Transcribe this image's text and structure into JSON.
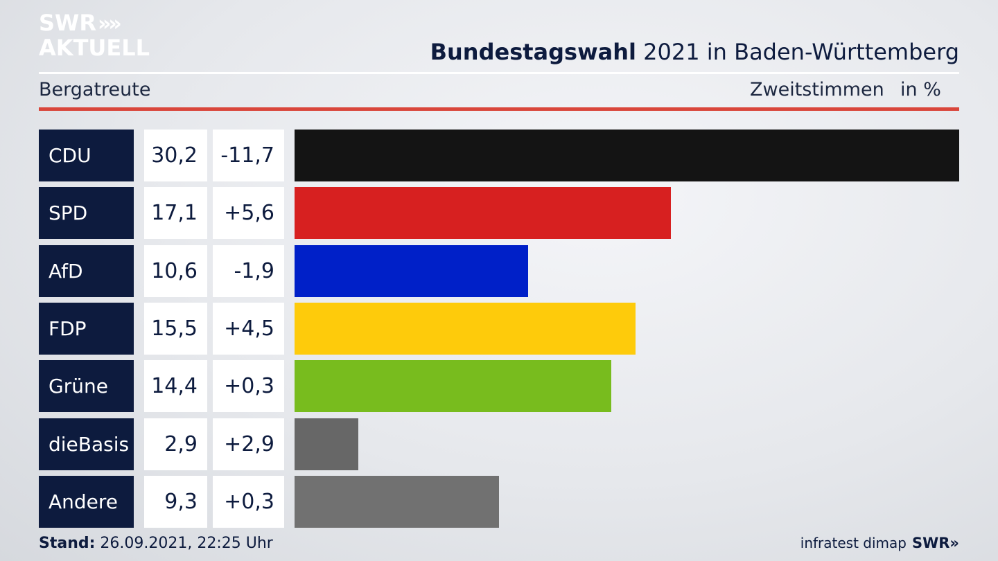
{
  "header": {
    "logo_line1": "SWR",
    "logo_chevrons": "»",
    "logo_line2": "AKTUELL",
    "title_bold": "Bundestagswahl",
    "title_rest": " 2021 in Baden-Württemberg",
    "region": "Bergatreute",
    "metric": "Zweitstimmen",
    "unit": "in %"
  },
  "footer": {
    "stand_label": "Stand:",
    "stand_value": " 26.09.2021, 22:25 Uhr",
    "source": "infratest dimap",
    "brand": "SWR»"
  },
  "chart_data": {
    "type": "bar",
    "orientation": "horizontal",
    "title": "Bundestagswahl 2021 in Baden-Württemberg",
    "subtitle": "Bergatreute",
    "unit": "in %",
    "categories": [
      "CDU",
      "SPD",
      "AfD",
      "FDP",
      "Grüne",
      "dieBasis",
      "Andere"
    ],
    "values": [
      30.2,
      17.1,
      10.6,
      15.5,
      14.4,
      2.9,
      9.3
    ],
    "value_labels": [
      "30,2",
      "17,1",
      "10,6",
      "15,5",
      "14,4",
      "2,9",
      "9,3"
    ],
    "diff_labels": [
      "-11,7",
      "+5,6",
      "-1,9",
      "+4,5",
      "+0,3",
      "+2,9",
      "+0,3"
    ],
    "colors": [
      "#141414",
      "#d72020",
      "#0020c8",
      "#fecb0b",
      "#78bc1e",
      "#676767",
      "#717171"
    ],
    "xlim": [
      0,
      30.2
    ],
    "grid": false,
    "legend": "none"
  }
}
